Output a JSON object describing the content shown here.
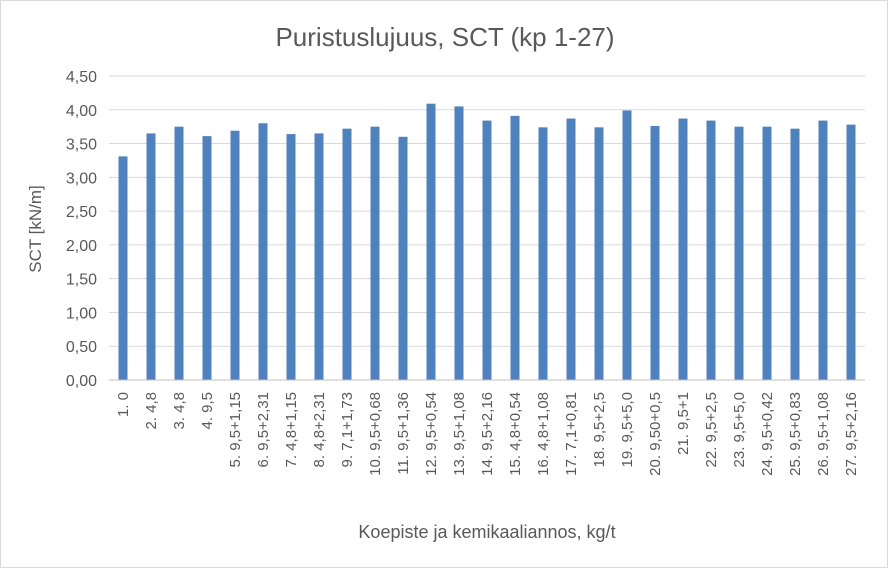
{
  "chart_data": {
    "type": "bar",
    "title": "Puristuslujuus, SCT (kp 1-27)",
    "xlabel": "Koepiste ja kemikaaliannos, kg/t",
    "ylabel": "SCT [kN/m]",
    "ylim": [
      0,
      4.5
    ],
    "yticks": [
      "0,00",
      "0,50",
      "1,00",
      "1,50",
      "2,00",
      "2,50",
      "3,00",
      "3,50",
      "4,00",
      "4,50"
    ],
    "grid": true,
    "bar_color": "#4f81bd",
    "categories": [
      "1.  0",
      "2.  4,8",
      "3.  4,8",
      "4.  9,5",
      "5.  9,5+1,15",
      "6.  9,5+2,31",
      "7.  4,8+1,15",
      "8.  4,8+2,31",
      "9.  7,1+1,73",
      "10.  9,5+0,68",
      "11.  9,5+1,36",
      "12.  9,5+0,54",
      "13.  9,5+1,08",
      "14.  9,5+2,16",
      "15.  4,8+0,54",
      "16.  4,8+1,08",
      "17.  7,1+0,81",
      "18.  9,5+2,5",
      "19.  9,5+5,0",
      "20.  9,50+0,5",
      "21.  9,5+1",
      "22.  9,5+2,5",
      "23.  9,5+5,0",
      "24.  9,5+0,42",
      "25.  9,5+0,83",
      "26.  9,5+1,08",
      "27.  9,5+2,16"
    ],
    "values": [
      3.31,
      3.65,
      3.75,
      3.61,
      3.69,
      3.8,
      3.64,
      3.65,
      3.72,
      3.75,
      3.6,
      4.09,
      4.05,
      3.84,
      3.91,
      3.74,
      3.87,
      3.74,
      3.99,
      3.76,
      3.87,
      3.84,
      3.75,
      3.75,
      3.72,
      3.84,
      3.78
    ]
  }
}
